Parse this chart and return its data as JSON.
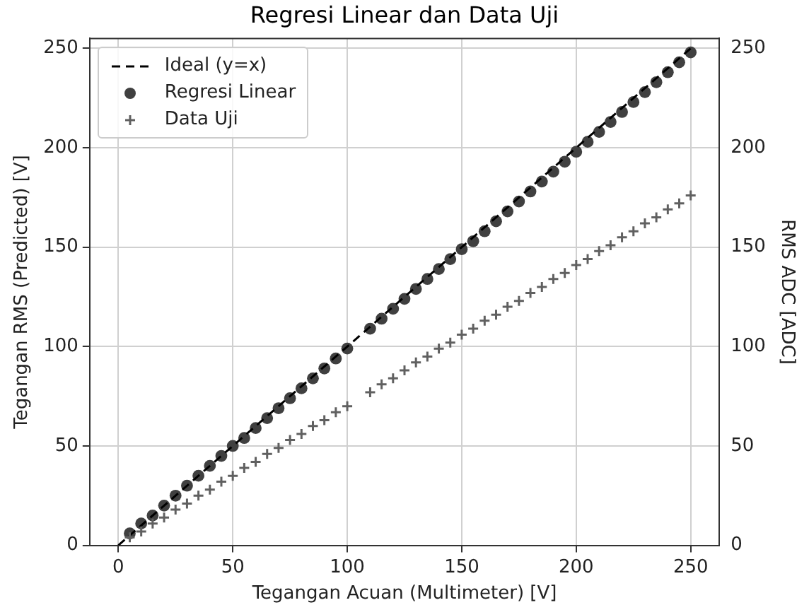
{
  "chart_data": {
    "type": "scatter",
    "title": "Regresi Linear dan Data Uji",
    "xlabel": "Tegangan Acuan (Multimeter) [V]",
    "ylabel": "Tegangan RMS (Predicted) [V]",
    "y2label": "RMS ADC [ADC]",
    "xlim": [
      -12.5,
      262.5
    ],
    "xticks": [
      0,
      50,
      100,
      150,
      200,
      250
    ],
    "ylim": [
      0,
      255
    ],
    "yticks": [
      0,
      50,
      100,
      150,
      200,
      250
    ],
    "y2lim": [
      0,
      255
    ],
    "y2ticks": [
      0,
      50,
      100,
      150,
      200,
      250
    ],
    "grid": true,
    "legend": "top left",
    "series": [
      {
        "name": "Ideal (y=x)",
        "type": "line",
        "color": "#000000",
        "line_style": "dashed",
        "marker": "none",
        "x": [
          0,
          250
        ],
        "values": [
          0,
          250
        ]
      },
      {
        "name": "Regresi Linear",
        "color": "#404040",
        "marker": "circle",
        "x": [
          5,
          10,
          15,
          20,
          25,
          30,
          35,
          40,
          45,
          50,
          55,
          60,
          65,
          70,
          75,
          80,
          85,
          90,
          95,
          100,
          110,
          115,
          120,
          125,
          130,
          135,
          140,
          145,
          150,
          155,
          160,
          165,
          170,
          175,
          180,
          185,
          190,
          195,
          200,
          205,
          210,
          215,
          220,
          225,
          230,
          235,
          240,
          245,
          250
        ],
        "values": [
          6,
          11,
          15,
          20,
          25,
          30,
          35,
          40,
          45,
          50,
          54,
          59,
          64,
          69,
          74,
          79,
          84,
          89,
          94,
          99,
          109,
          114,
          119,
          124,
          129,
          134,
          139,
          144,
          149,
          153,
          158,
          163,
          168,
          173,
          178,
          183,
          188,
          193,
          198,
          203,
          208,
          213,
          218,
          223,
          228,
          233,
          238,
          243,
          248
        ]
      },
      {
        "name": "Data Uji",
        "axis": "y2",
        "color": "#606060",
        "marker": "cross",
        "x": [
          5,
          10,
          15,
          20,
          25,
          30,
          35,
          40,
          45,
          50,
          55,
          60,
          65,
          70,
          75,
          80,
          85,
          90,
          95,
          100,
          110,
          115,
          120,
          125,
          130,
          135,
          140,
          145,
          150,
          155,
          160,
          165,
          170,
          175,
          180,
          185,
          190,
          195,
          200,
          205,
          210,
          215,
          220,
          225,
          230,
          235,
          240,
          245,
          250
        ],
        "values": [
          4,
          7,
          11,
          14,
          18,
          21,
          25,
          28,
          32,
          35,
          39,
          42,
          46,
          49,
          53,
          56,
          60,
          63,
          67,
          70,
          77,
          81,
          84,
          88,
          92,
          95,
          99,
          102,
          106,
          109,
          113,
          116,
          120,
          123,
          127,
          130,
          134,
          137,
          141,
          144,
          148,
          151,
          155,
          158,
          162,
          165,
          169,
          172,
          176
        ]
      }
    ]
  }
}
